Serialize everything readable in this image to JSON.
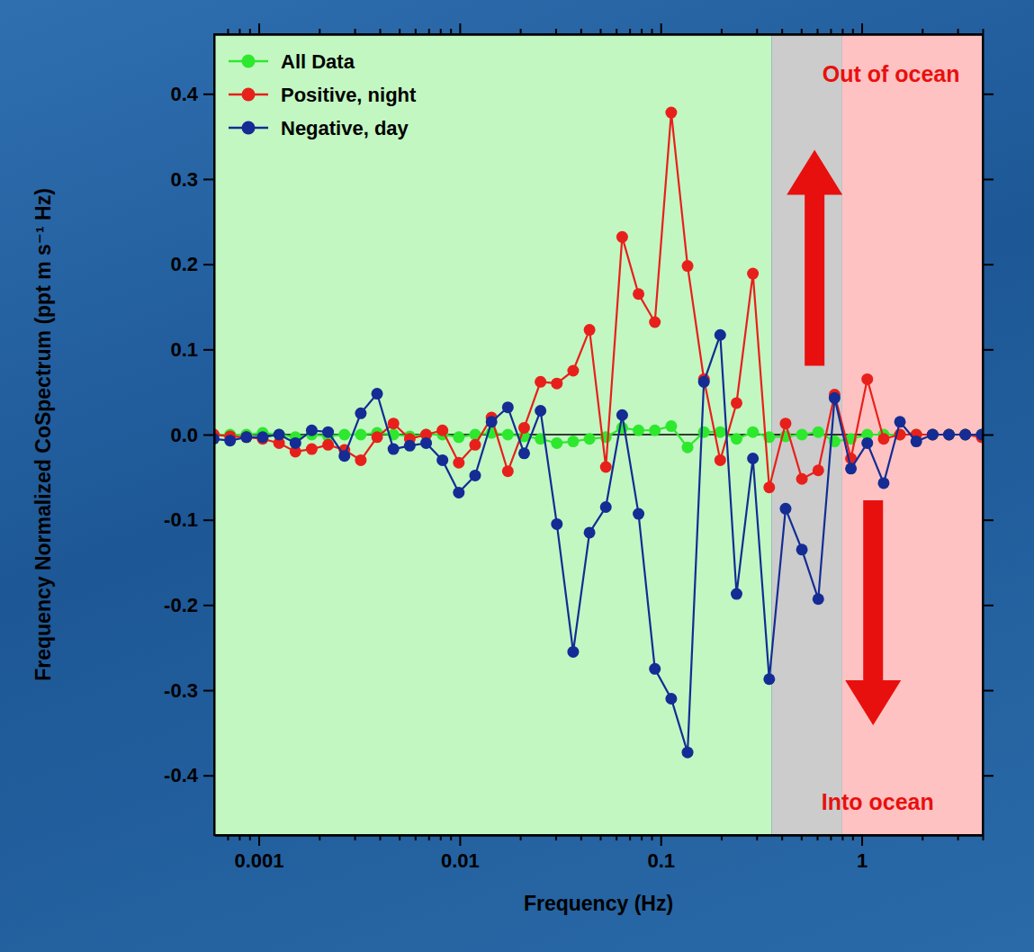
{
  "chart_data": {
    "type": "line",
    "x_label": "Frequency (Hz)",
    "y_label": "Frequency Normalized CoSpectrum (ppt m s⁻¹ Hz)",
    "log": "x",
    "legend": "upper left",
    "xlim": [
      0.0006,
      4
    ],
    "ylim": [
      -0.47,
      0.47
    ],
    "xticks": [
      0.001,
      0.01,
      0.1,
      1
    ],
    "xticks_minor": [
      0.0007,
      0.0008,
      0.0009,
      0.002,
      0.003,
      0.004,
      0.005,
      0.006,
      0.007,
      0.008,
      0.009,
      0.02,
      0.03,
      0.04,
      0.05,
      0.06,
      0.07,
      0.08,
      0.09,
      0.2,
      0.3,
      0.4,
      0.5,
      0.6,
      0.7,
      0.8,
      0.9,
      2,
      3,
      4
    ],
    "yticks": [
      -0.4,
      -0.3,
      -0.2,
      -0.1,
      {
        "value": 0,
        "label": "0.0"
      },
      0.1,
      0.2,
      0.3,
      0.4
    ],
    "hlines": [
      0
    ],
    "shaded_regions": [
      {
        "from": 0.0006,
        "to": 0.356,
        "color": "#c2f7c2"
      },
      {
        "from": 0.356,
        "to": 0.8,
        "color": "#cccccc"
      },
      {
        "from": 0.8,
        "to": 4,
        "color": "#ffc2c2"
      }
    ],
    "annotations": [
      {
        "text": "Out of ocean",
        "x": 1.4,
        "y": 0.424,
        "color": "#e8100e"
      },
      {
        "text": "Into ocean",
        "x": 1.2,
        "y": -0.431,
        "color": "#e8100e"
      }
    ],
    "x": [
      0.000597,
      0.00072,
      0.000868,
      0.001046,
      0.001262,
      0.001522,
      0.001835,
      0.002213,
      0.002668,
      0.003218,
      0.00388,
      0.004679,
      0.005642,
      0.006804,
      0.008204,
      0.009893,
      0.01193,
      0.01439,
      0.01735,
      0.02092,
      0.02523,
      0.03042,
      0.03668,
      0.04423,
      0.05333,
      0.06431,
      0.07755,
      0.09352,
      0.1128,
      0.136,
      0.164,
      0.1977,
      0.2384,
      0.2875,
      0.3467,
      0.4181,
      0.5041,
      0.608,
      0.7331,
      0.884,
      1.066,
      1.286,
      1.55,
      1.869,
      2.254,
      2.718,
      3.278,
      3.953
    ],
    "series": [
      {
        "name": "All Data",
        "color": "#2ee82e",
        "marker": "circle",
        "values": [
          0,
          0,
          0,
          0.002,
          0,
          -0.003,
          0,
          -0.002,
          0,
          0,
          0.002,
          0,
          -0.002,
          0,
          0,
          -0.003,
          0,
          0.002,
          0,
          -0.002,
          -0.005,
          -0.01,
          -0.008,
          -0.005,
          -0.003,
          0.008,
          0.005,
          0.005,
          0.01,
          -0.015,
          0.003,
          0.003,
          -0.005,
          0.003,
          -0.003,
          -0.002,
          0,
          0.003,
          -0.008,
          -0.005,
          0,
          0,
          0,
          0,
          0,
          0,
          0,
          0
        ]
      },
      {
        "name": "Positive, night",
        "color": "#e8201b",
        "marker": "circle",
        "values": [
          0,
          -0.002,
          -0.003,
          -0.005,
          -0.01,
          -0.02,
          -0.017,
          -0.012,
          -0.018,
          -0.03,
          -0.003,
          0.013,
          -0.005,
          0,
          0.005,
          -0.033,
          -0.012,
          0.02,
          -0.043,
          0.008,
          0.062,
          0.06,
          0.075,
          0.123,
          -0.038,
          0.232,
          0.165,
          0.132,
          0.378,
          0.198,
          0.065,
          -0.03,
          0.037,
          0.189,
          -0.062,
          0.013,
          -0.052,
          -0.042,
          0.047,
          -0.028,
          0.065,
          -0.005,
          0,
          0,
          0,
          0,
          0,
          -0.003
        ]
      },
      {
        "name": "Negative, day",
        "color": "#142c94",
        "marker": "circle",
        "values": [
          -0.005,
          -0.007,
          -0.003,
          -0.003,
          0,
          -0.01,
          0.005,
          0.003,
          -0.025,
          0.025,
          0.048,
          -0.017,
          -0.013,
          -0.01,
          -0.03,
          -0.068,
          -0.048,
          0.015,
          0.032,
          -0.022,
          0.028,
          -0.105,
          -0.255,
          -0.115,
          -0.085,
          0.023,
          -0.093,
          -0.275,
          -0.31,
          -0.373,
          0.062,
          0.117,
          -0.187,
          -0.028,
          -0.287,
          -0.087,
          -0.135,
          -0.193,
          0.043,
          -0.04,
          -0.01,
          -0.057,
          0.015,
          -0.008,
          0,
          0,
          0,
          0
        ]
      }
    ]
  }
}
